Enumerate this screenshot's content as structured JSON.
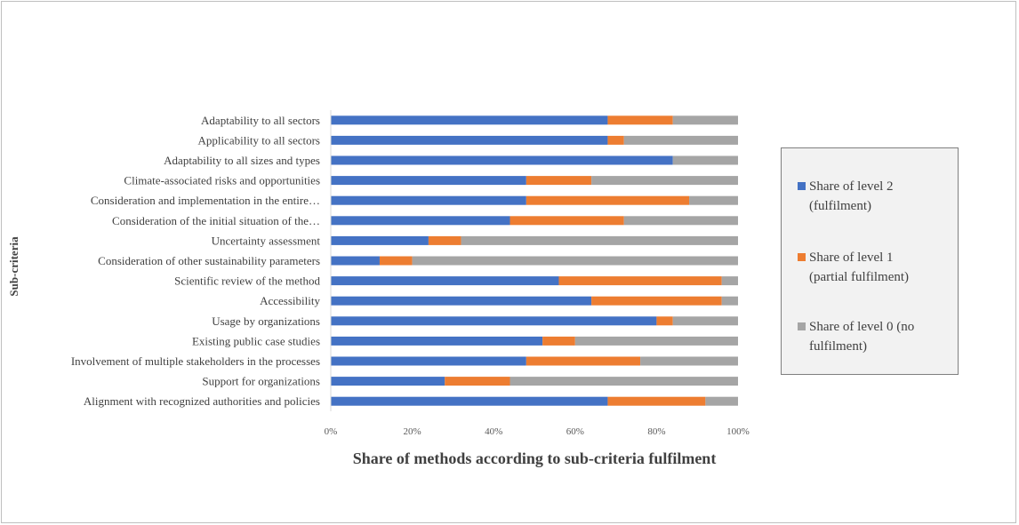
{
  "chart_data": {
    "type": "bar",
    "orientation": "horizontal",
    "stacked": "percent",
    "title": "",
    "xlabel": "Share of methods according to sub-criteria fulfilment",
    "ylabel": "Sub-criteria",
    "xlim": [
      0,
      100
    ],
    "x_ticks": [
      "0%",
      "20%",
      "40%",
      "60%",
      "80%",
      "100%"
    ],
    "grid": false,
    "legend_position": "right",
    "categories": [
      "Adaptability to all sectors",
      "Applicability to all sectors",
      "Adaptability to all sizes and types",
      "Climate-associated risks and opportunities",
      "Consideration and implementation in the entire…",
      "Consideration of the initial situation of the…",
      "Uncertainty assessment",
      "Consideration of other sustainability parameters",
      "Scientific review of the method",
      "Accessibility",
      "Usage by organizations",
      "Existing public case studies",
      "Involvement of multiple stakeholders in the processes",
      "Support for organizations",
      "Alignment with recognized authorities and policies"
    ],
    "series": [
      {
        "name": "Share of level 2 (fulfilment)",
        "color": "#4472c4",
        "values": [
          68,
          68,
          84,
          48,
          48,
          44,
          24,
          12,
          56,
          64,
          80,
          52,
          48,
          28,
          68
        ]
      },
      {
        "name": "Share of level 1 (partial fulfilment)",
        "color": "#ed7d31",
        "values": [
          16,
          4,
          0,
          16,
          40,
          28,
          8,
          8,
          40,
          32,
          4,
          8,
          28,
          16,
          24
        ]
      },
      {
        "name": "Share of level 0 (no fulfilment)",
        "color": "#a5a5a5",
        "values": [
          16,
          28,
          16,
          36,
          12,
          28,
          68,
          80,
          4,
          4,
          16,
          40,
          24,
          56,
          8
        ]
      }
    ],
    "legend": [
      {
        "lines": [
          "Share of level 2",
          "(fulfilment)"
        ],
        "color": "#4472c4"
      },
      {
        "lines": [
          "Share of level 1",
          "(partial fulfilment)"
        ],
        "color": "#ed7d31"
      },
      {
        "lines": [
          "Share of level 0 (no",
          "fulfilment)"
        ],
        "color": "#a5a5a5"
      }
    ]
  }
}
